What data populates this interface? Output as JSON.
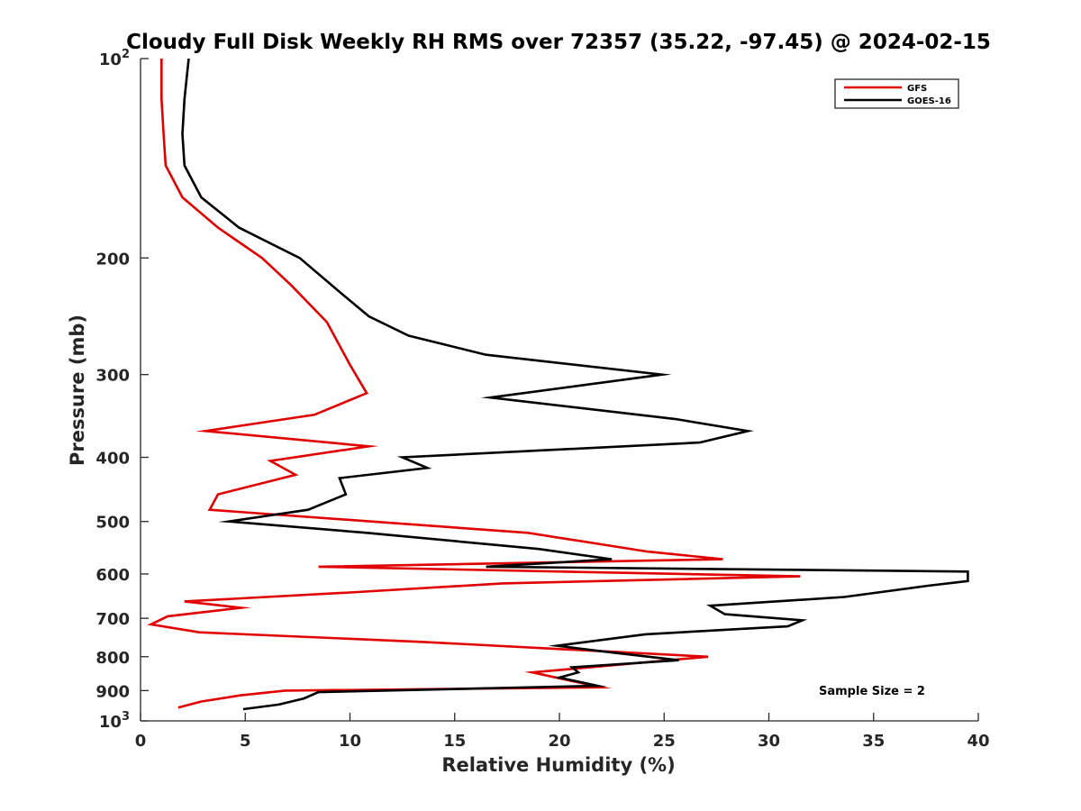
{
  "chart_data": {
    "type": "line",
    "title": "Cloudy Full Disk Weekly RH RMS over 72357 (35.22, -97.45) @ 2024-02-15",
    "xlabel": "Relative Humidity (%)",
    "ylabel": "Pressure (mb)",
    "xlim": [
      0,
      40
    ],
    "ylim": [
      100,
      1000
    ],
    "y_scale": "log",
    "y_reversed": true,
    "grid": false,
    "x_ticks": [
      "0",
      "5",
      "10",
      "15",
      "20",
      "25",
      "30",
      "35",
      "40"
    ],
    "y_ticks": [
      {
        "value": 100,
        "base": "10",
        "exp": "2"
      },
      {
        "value": 200,
        "base": "200",
        "exp": ""
      },
      {
        "value": 300,
        "base": "300",
        "exp": ""
      },
      {
        "value": 400,
        "base": "400",
        "exp": ""
      },
      {
        "value": 500,
        "base": "500",
        "exp": ""
      },
      {
        "value": 600,
        "base": "600",
        "exp": ""
      },
      {
        "value": 700,
        "base": "700",
        "exp": ""
      },
      {
        "value": 800,
        "base": "800",
        "exp": ""
      },
      {
        "value": 900,
        "base": "900",
        "exp": ""
      },
      {
        "value": 1000,
        "base": "10",
        "exp": "3"
      }
    ],
    "legend_position": "top-right",
    "annotation": "Sample Size = 2",
    "series": [
      {
        "name": "GFS",
        "color": "#e00000",
        "points": [
          [
            1.0,
            100
          ],
          [
            1.0,
            115
          ],
          [
            1.1,
            130
          ],
          [
            1.2,
            145
          ],
          [
            2.0,
            162
          ],
          [
            3.7,
            180
          ],
          [
            5.8,
            200
          ],
          [
            7.2,
            220
          ],
          [
            8.9,
            250
          ],
          [
            10.0,
            290
          ],
          [
            10.8,
            320
          ],
          [
            8.3,
            345
          ],
          [
            3.1,
            365
          ],
          [
            10.9,
            385
          ],
          [
            6.2,
            405
          ],
          [
            7.4,
            425
          ],
          [
            3.7,
            455
          ],
          [
            3.3,
            480
          ],
          [
            18.5,
            520
          ],
          [
            24.2,
            555
          ],
          [
            27.8,
            570
          ],
          [
            8.5,
            585
          ],
          [
            31.5,
            605
          ],
          [
            17.3,
            620
          ],
          [
            10.0,
            640
          ],
          [
            2.1,
            660
          ],
          [
            4.8,
            675
          ],
          [
            1.3,
            695
          ],
          [
            0.5,
            715
          ],
          [
            2.8,
            735
          ],
          [
            13.5,
            760
          ],
          [
            27.1,
            800
          ],
          [
            18.7,
            845
          ],
          [
            22.0,
            890
          ],
          [
            6.9,
            900
          ],
          [
            4.8,
            915
          ],
          [
            2.9,
            935
          ],
          [
            1.8,
            955
          ]
        ]
      },
      {
        "name": "GOES-16",
        "color": "#000000",
        "points": [
          [
            2.3,
            100
          ],
          [
            2.1,
            115
          ],
          [
            2.0,
            130
          ],
          [
            2.1,
            145
          ],
          [
            2.9,
            162
          ],
          [
            4.7,
            180
          ],
          [
            7.6,
            200
          ],
          [
            9.5,
            225
          ],
          [
            10.9,
            245
          ],
          [
            12.8,
            262
          ],
          [
            16.5,
            280
          ],
          [
            24.9,
            300
          ],
          [
            16.7,
            325
          ],
          [
            25.5,
            350
          ],
          [
            29.0,
            365
          ],
          [
            26.7,
            380
          ],
          [
            12.5,
            400
          ],
          [
            13.7,
            415
          ],
          [
            9.5,
            430
          ],
          [
            9.8,
            455
          ],
          [
            8.0,
            480
          ],
          [
            4.2,
            500
          ],
          [
            10.8,
            520
          ],
          [
            19.0,
            550
          ],
          [
            22.5,
            570
          ],
          [
            16.5,
            585
          ],
          [
            39.5,
            595
          ],
          [
            39.5,
            615
          ],
          [
            37.6,
            625
          ],
          [
            33.6,
            650
          ],
          [
            27.2,
            670
          ],
          [
            27.9,
            690
          ],
          [
            31.6,
            705
          ],
          [
            30.9,
            720
          ],
          [
            24.1,
            740
          ],
          [
            19.9,
            770
          ],
          [
            22.0,
            785
          ],
          [
            25.7,
            810
          ],
          [
            20.6,
            830
          ],
          [
            20.9,
            845
          ],
          [
            20.0,
            860
          ],
          [
            21.8,
            885
          ],
          [
            8.5,
            905
          ],
          [
            7.8,
            925
          ],
          [
            6.6,
            945
          ],
          [
            4.9,
            960
          ]
        ]
      }
    ]
  }
}
